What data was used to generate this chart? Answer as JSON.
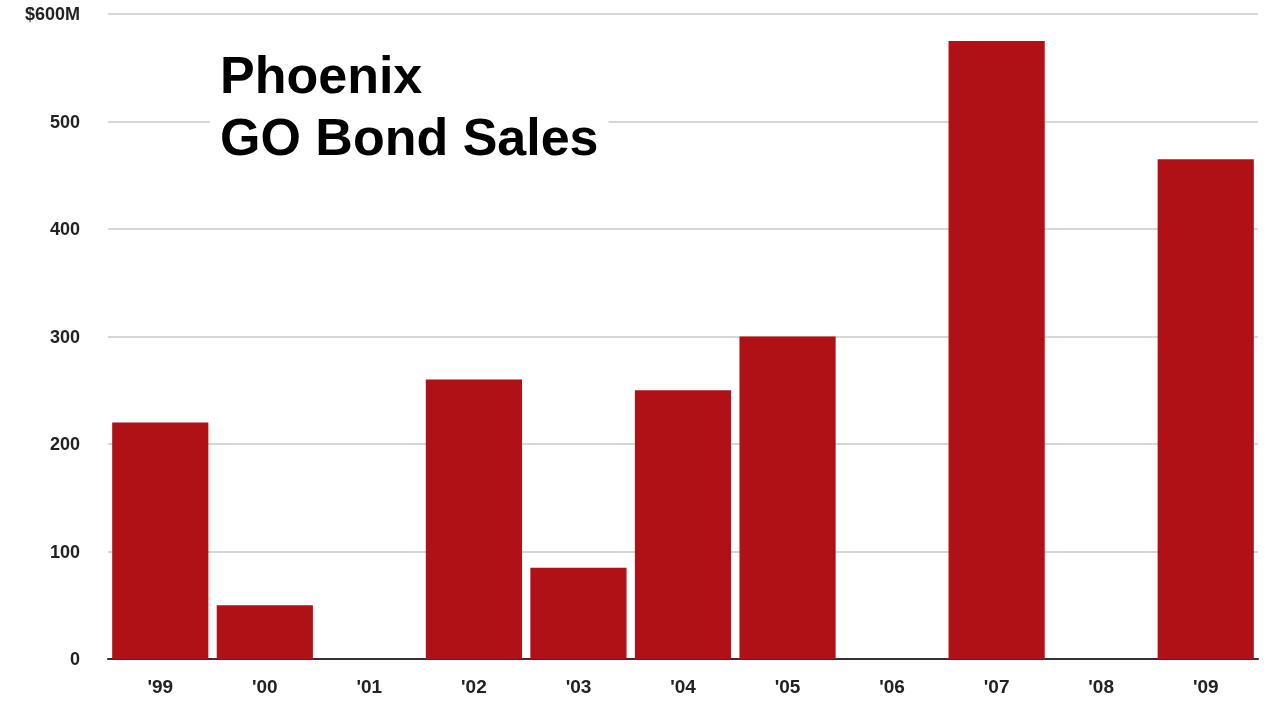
{
  "chart_data": {
    "type": "bar",
    "title": "Phoenix\nGO Bond Sales",
    "categories": [
      "'99",
      "'00",
      "'01",
      "'02",
      "'03",
      "'04",
      "'05",
      "'06",
      "'07",
      "'08",
      "'09"
    ],
    "values": [
      220,
      50,
      0,
      260,
      85,
      250,
      300,
      0,
      575,
      0,
      465
    ],
    "color": "#b01116",
    "ylim": [
      0,
      600
    ],
    "yticks": [
      0,
      100,
      200,
      300,
      400,
      500,
      {
        "value": 600,
        "label": "$600M"
      }
    ],
    "grid": "y"
  }
}
